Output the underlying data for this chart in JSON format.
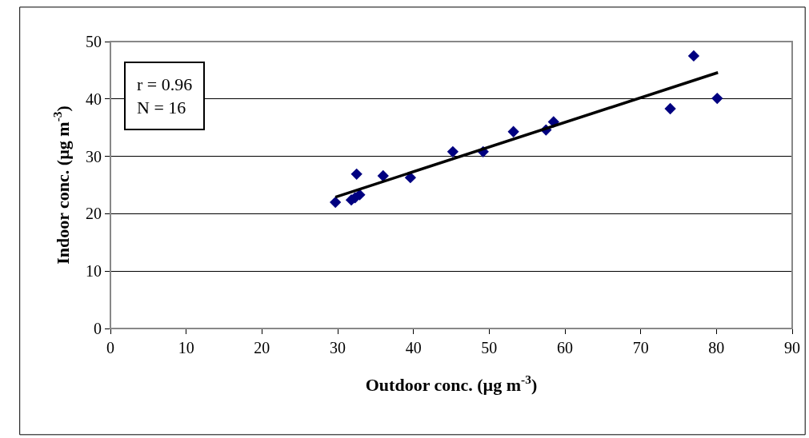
{
  "chart_data": {
    "type": "scatter",
    "xlabel": "Outdoor conc. (µg m$^{-3}$)",
    "ylabel": "Indoor conc. (µg m$^{-3}$)",
    "annotations": [
      "r = 0.96\nN = 16"
    ],
    "xlim": [
      0,
      90
    ],
    "ylim": [
      0,
      50
    ],
    "xticks": [
      0,
      10,
      20,
      30,
      40,
      50,
      60,
      70,
      80,
      90
    ],
    "yticks": [
      0,
      10,
      20,
      30,
      40,
      50
    ],
    "grid": "y",
    "marker": "diamond",
    "series": [
      {
        "color": "#000080",
        "x": [
          29.7,
          31.8,
          32.3,
          32.9,
          32.5,
          36.0,
          39.6,
          45.2,
          49.2,
          53.2,
          57.5,
          58.5,
          73.9,
          77.0,
          80.1
        ],
        "values": [
          22.0,
          22.4,
          22.8,
          23.3,
          26.9,
          26.6,
          26.3,
          30.8,
          30.8,
          34.3,
          34.6,
          36.0,
          38.3,
          47.5,
          40.1
        ]
      },
      {
        "type": "line",
        "color": "#000000",
        "x": [
          29.7,
          80.2
        ],
        "values": [
          22.9,
          44.6
        ],
        "marker": "none",
        "line_style": "solid"
      }
    ]
  }
}
